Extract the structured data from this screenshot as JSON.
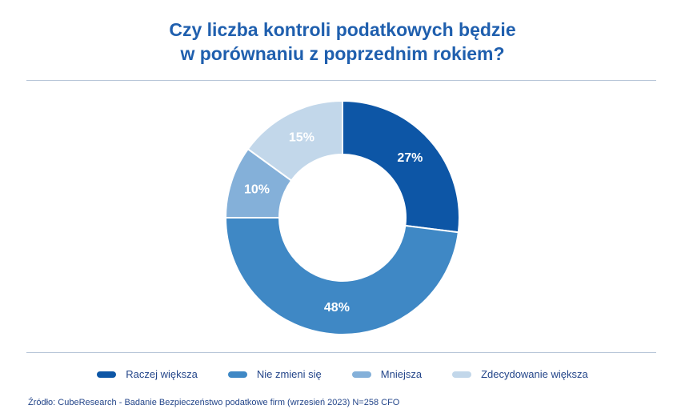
{
  "chart_data": {
    "type": "pie",
    "variant": "donut",
    "title_lines": [
      "Czy liczba kontroli podatkowych będzie",
      "w porównaniu z poprzednim rokiem?"
    ],
    "slices": [
      {
        "name": "Raczej większa",
        "value": 27,
        "label": "27%",
        "color": "#0d56a6"
      },
      {
        "name": "Nie zmieni się",
        "value": 48,
        "label": "48%",
        "color": "#3f88c5"
      },
      {
        "name": "Mniejsza",
        "value": 10,
        "label": "10%",
        "color": "#84b0d9"
      },
      {
        "name": "Zdecydowanie większa",
        "value": 15,
        "label": "15%",
        "color": "#c2d7ea"
      }
    ],
    "legend_placement": "bottom"
  },
  "source": "Źródło: CubeResearch - Badanie Bezpieczeństwo podatkowe firm (wrzesień 2023) N=258 CFO",
  "colors": {
    "title": "#1f5fae",
    "label_text": "#ffffff",
    "divider": "#b8c6d8"
  }
}
